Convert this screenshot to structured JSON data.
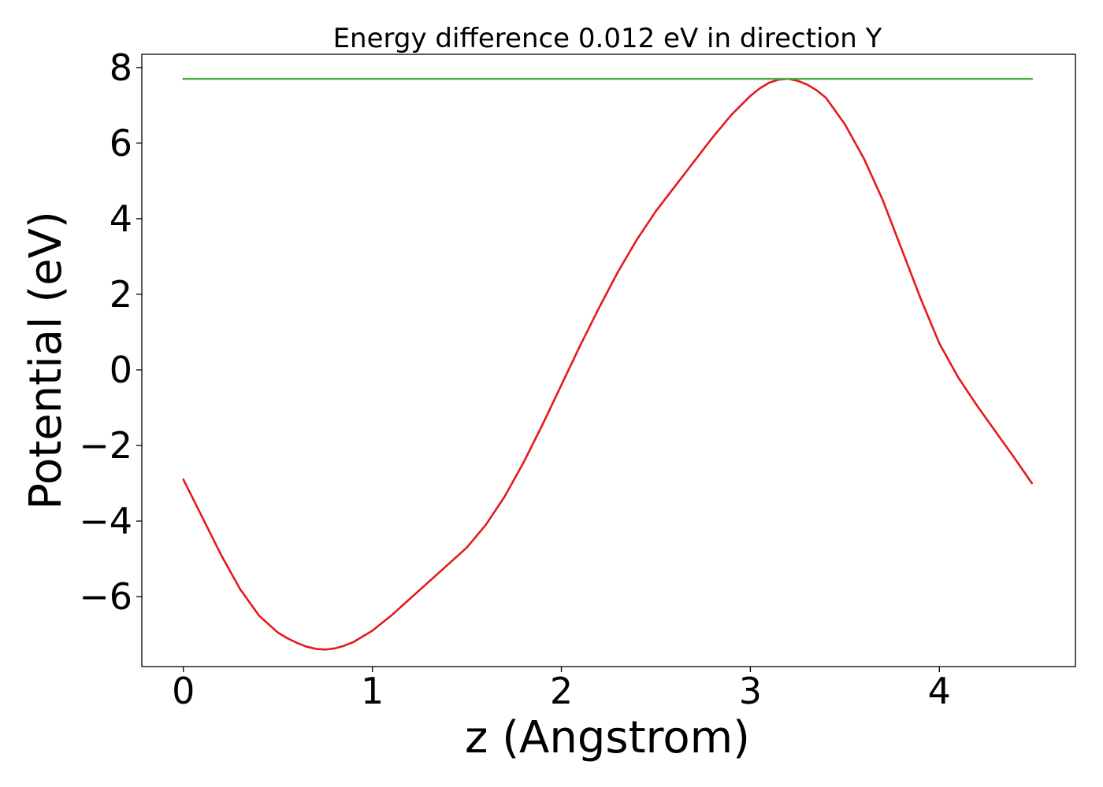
{
  "chart_data": {
    "type": "line",
    "title": "Energy difference 0.012 eV in direction Y",
    "xlabel": "z (Angstrom)",
    "ylabel": "Potential (eV)",
    "xlim": [
      -0.22,
      4.72
    ],
    "ylim": [
      -7.85,
      8.35
    ],
    "x_ticks": [
      0,
      1,
      2,
      3,
      4
    ],
    "x_tick_labels": [
      "0",
      "1",
      "2",
      "3",
      "4"
    ],
    "y_ticks": [
      8,
      6,
      4,
      2,
      0,
      -2,
      -4,
      -6
    ],
    "y_tick_labels": [
      "8",
      "6",
      "4",
      "2",
      "0",
      "−2",
      "−4",
      "−6"
    ],
    "grid": false,
    "legend": "none",
    "series": [
      {
        "color": "#e41a1c",
        "x": [
          0.0,
          0.1,
          0.2,
          0.3,
          0.4,
          0.5,
          0.55,
          0.6,
          0.65,
          0.7,
          0.75,
          0.8,
          0.85,
          0.9,
          1.0,
          1.1,
          1.2,
          1.3,
          1.4,
          1.5,
          1.6,
          1.7,
          1.8,
          1.9,
          2.0,
          2.1,
          2.2,
          2.3,
          2.4,
          2.5,
          2.6,
          2.7,
          2.8,
          2.9,
          3.0,
          3.05,
          3.1,
          3.15,
          3.2,
          3.25,
          3.3,
          3.35,
          3.4,
          3.5,
          3.6,
          3.7,
          3.8,
          3.9,
          4.0,
          4.1,
          4.2,
          4.3,
          4.4,
          4.49
        ],
        "y": [
          -2.9,
          -3.9,
          -4.9,
          -5.8,
          -6.5,
          -6.95,
          -7.1,
          -7.22,
          -7.32,
          -7.38,
          -7.4,
          -7.37,
          -7.3,
          -7.2,
          -6.9,
          -6.5,
          -6.05,
          -5.6,
          -5.15,
          -4.7,
          -4.1,
          -3.35,
          -2.45,
          -1.45,
          -0.4,
          0.65,
          1.65,
          2.6,
          3.45,
          4.2,
          4.85,
          5.5,
          6.15,
          6.75,
          7.25,
          7.45,
          7.6,
          7.68,
          7.7,
          7.65,
          7.55,
          7.4,
          7.2,
          6.5,
          5.6,
          4.5,
          3.2,
          1.9,
          0.7,
          -0.2,
          -0.95,
          -1.65,
          -2.35,
          -3.0
        ]
      },
      {
        "color": "#4daf4a",
        "x": [
          0.0,
          4.49
        ],
        "y": [
          7.7,
          7.7
        ]
      }
    ]
  }
}
